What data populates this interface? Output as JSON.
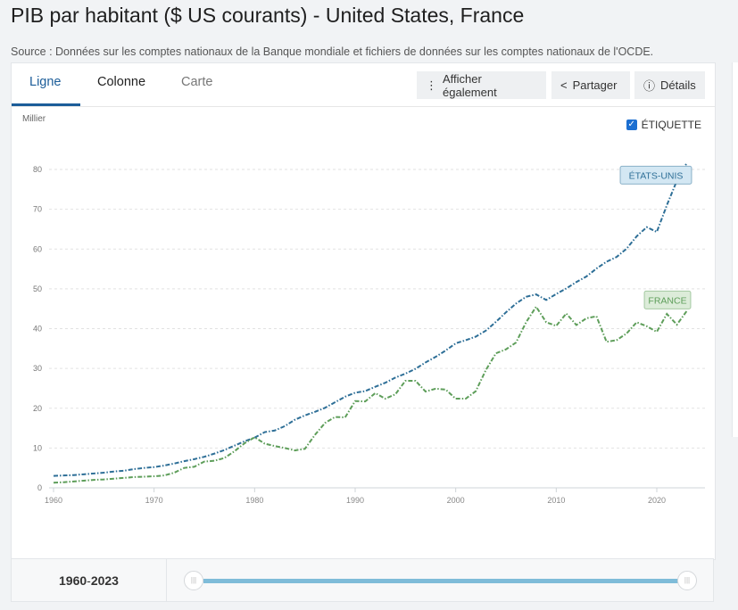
{
  "header": {
    "title": "PIB par habitant ($ US courants) - United States, France",
    "source": "Source : Données sur les comptes nationaux de la Banque mondiale et fichiers de données sur les comptes nationaux de l'OCDE."
  },
  "tabs": [
    {
      "label": "Ligne"
    },
    {
      "label": "Colonne"
    },
    {
      "label": "Carte"
    }
  ],
  "buttons": {
    "also": "Afficher également",
    "share": "Partager",
    "details": "Détails"
  },
  "label_toggle": {
    "label": "ÉTIQUETTE",
    "checked": true
  },
  "footer": {
    "range_start": "1960",
    "range_sep": " - ",
    "range_end": "2023"
  },
  "chart_data": {
    "type": "line",
    "title": "PIB par habitant ($ US courants) - United States, France",
    "ylabel": "Millier",
    "xlabel": "",
    "ylim": [
      0,
      85
    ],
    "xlim": [
      1960,
      2024.5
    ],
    "yticks": [
      0,
      10,
      20,
      30,
      40,
      50,
      60,
      70,
      80
    ],
    "xticks": [
      1960,
      1970,
      1980,
      1990,
      2000,
      2010,
      2020
    ],
    "grid": true,
    "x": [
      1960,
      1961,
      1962,
      1963,
      1964,
      1965,
      1966,
      1967,
      1968,
      1969,
      1970,
      1971,
      1972,
      1973,
      1974,
      1975,
      1976,
      1977,
      1978,
      1979,
      1980,
      1981,
      1982,
      1983,
      1984,
      1985,
      1986,
      1987,
      1988,
      1989,
      1990,
      1991,
      1992,
      1993,
      1994,
      1995,
      1996,
      1997,
      1998,
      1999,
      2000,
      2001,
      2002,
      2003,
      2004,
      2005,
      2006,
      2007,
      2008,
      2009,
      2010,
      2011,
      2012,
      2013,
      2014,
      2015,
      2016,
      2017,
      2018,
      2019,
      2020,
      2021,
      2022,
      2023
    ],
    "series": [
      {
        "name": "ÉTATS-UNIS",
        "color": "#2e6f97",
        "label_bg": "#d3e7f3",
        "values": [
          3.0,
          3.1,
          3.2,
          3.4,
          3.6,
          3.8,
          4.1,
          4.3,
          4.7,
          5.0,
          5.2,
          5.6,
          6.1,
          6.7,
          7.2,
          7.8,
          8.6,
          9.5,
          10.6,
          11.7,
          12.6,
          14.0,
          14.4,
          15.5,
          17.1,
          18.2,
          19.1,
          20.1,
          21.5,
          22.9,
          23.9,
          24.3,
          25.4,
          26.4,
          27.7,
          28.7,
          29.9,
          31.5,
          32.9,
          34.5,
          36.3,
          37.1,
          38.0,
          39.5,
          41.7,
          44.1,
          46.3,
          48.0,
          48.6,
          47.2,
          48.7,
          50.1,
          51.7,
          53.1,
          55.1,
          56.8,
          58.0,
          60.1,
          63.2,
          65.5,
          64.3,
          71.0,
          77.2,
          81.7
        ]
      },
      {
        "name": "FRANCE",
        "color": "#5e9e5a",
        "label_bg": "#dcecd9",
        "values": [
          1.3,
          1.4,
          1.6,
          1.8,
          2.0,
          2.1,
          2.3,
          2.5,
          2.7,
          2.8,
          2.9,
          3.1,
          3.8,
          5.0,
          5.3,
          6.6,
          6.8,
          7.5,
          9.2,
          11.2,
          12.7,
          11.1,
          10.5,
          10.0,
          9.4,
          9.8,
          13.3,
          16.3,
          17.8,
          17.7,
          21.8,
          21.7,
          23.8,
          22.4,
          23.5,
          26.9,
          26.9,
          24.2,
          24.9,
          24.7,
          22.4,
          22.4,
          24.3,
          29.6,
          33.8,
          34.8,
          36.5,
          41.6,
          45.5,
          41.6,
          40.7,
          43.8,
          40.9,
          42.6,
          43.1,
          36.7,
          37.1,
          38.8,
          41.6,
          40.6,
          39.2,
          43.7,
          41.0,
          44.5
        ]
      }
    ]
  }
}
